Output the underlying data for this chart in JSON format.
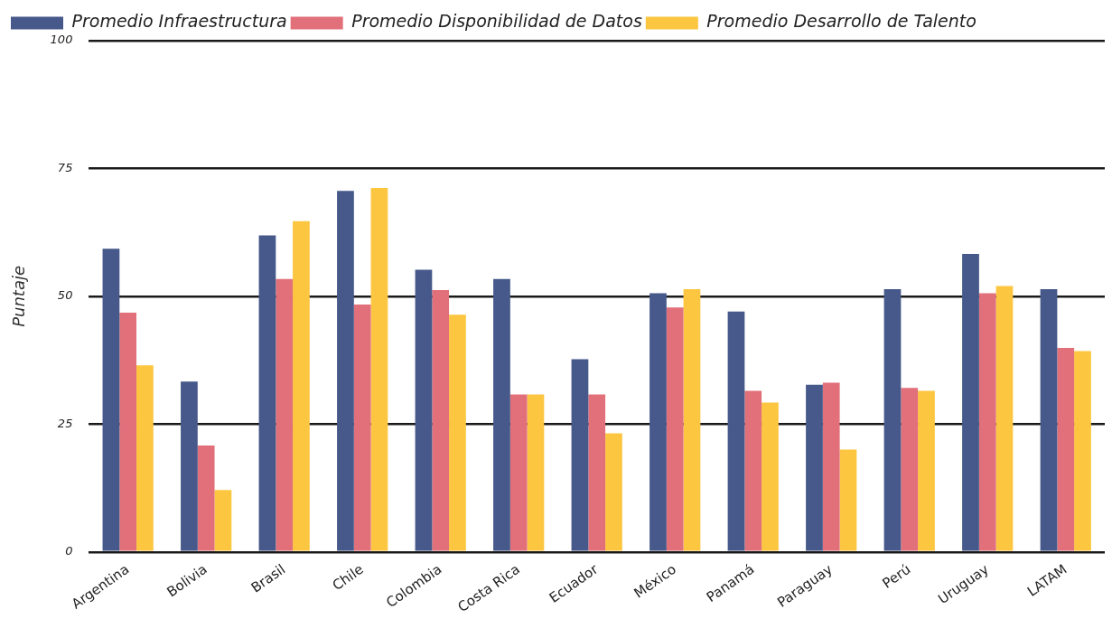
{
  "chart_data": {
    "type": "bar",
    "ylabel": "Puntaje",
    "categories": [
      "Argentina",
      "Bolivia",
      "Brasil",
      "Chile",
      "Colombia",
      "Costa Rica",
      "Ecuador",
      "México",
      "Panamá",
      "Paraguay",
      "Perú",
      "Uruguay",
      "LATAM"
    ],
    "series": [
      {
        "name": "Promedio Infraestructura",
        "color": "#46598a",
        "values": [
          59.3,
          33.3,
          61.9,
          70.6,
          55.2,
          53.4,
          37.7,
          50.6,
          47.0,
          32.7,
          51.4,
          58.3,
          51.4
        ]
      },
      {
        "name": "Promedio Disponibilidad de Datos",
        "color": "#e1707a",
        "values": [
          46.8,
          20.8,
          53.4,
          48.4,
          51.2,
          30.8,
          30.8,
          47.8,
          31.5,
          33.1,
          32.1,
          50.6,
          39.9
        ]
      },
      {
        "name": "Promedio Desarrollo de Talento",
        "color": "#fcc641",
        "values": [
          36.5,
          12.1,
          64.7,
          71.2,
          46.4,
          30.8,
          23.2,
          51.4,
          29.2,
          20.0,
          31.5,
          52.0,
          39.3
        ]
      }
    ],
    "ylim": [
      0,
      100
    ],
    "yticks": [
      0,
      25,
      50,
      75,
      100
    ],
    "grid": "y",
    "legend": "top left"
  }
}
